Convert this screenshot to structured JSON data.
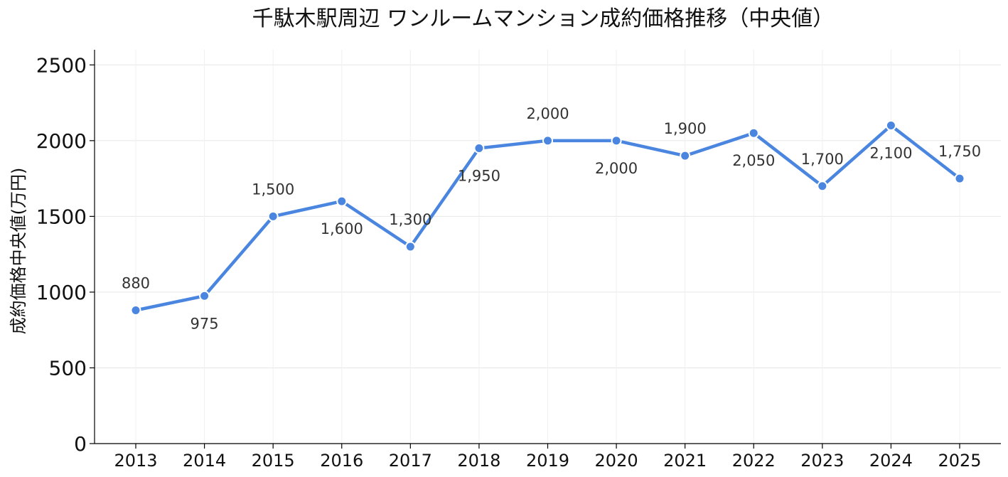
{
  "chart_data": {
    "type": "line",
    "title": "千駄木駅周辺 ワンルームマンション成約価格推移（中央値）",
    "xlabel": "",
    "ylabel": "成約価格中央値(万円)",
    "x": [
      "2013",
      "2014",
      "2015",
      "2016",
      "2017",
      "2018",
      "2019",
      "2020",
      "2021",
      "2022",
      "2023",
      "2024",
      "2025"
    ],
    "series": [
      {
        "values": [
          880,
          975,
          1500,
          1600,
          1300,
          1950,
          2000,
          2000,
          1900,
          2050,
          1700,
          2100,
          1750
        ],
        "data_labels": [
          "880",
          "975",
          "1,500",
          "1,600",
          "1,300",
          "1,950",
          "2,000",
          "2,000",
          "1,900",
          "2,050",
          "1,700",
          "2,100",
          "1,750"
        ],
        "label_position": [
          "above",
          "below",
          "above",
          "below",
          "above",
          "below",
          "above",
          "below",
          "above",
          "below",
          "above",
          "below",
          "above"
        ]
      }
    ],
    "ylim": [
      0,
      2600
    ],
    "yticks": [
      "0",
      "500",
      "1000",
      "1500",
      "2000",
      "2500"
    ],
    "grid": true,
    "color": "#4a86e0"
  }
}
